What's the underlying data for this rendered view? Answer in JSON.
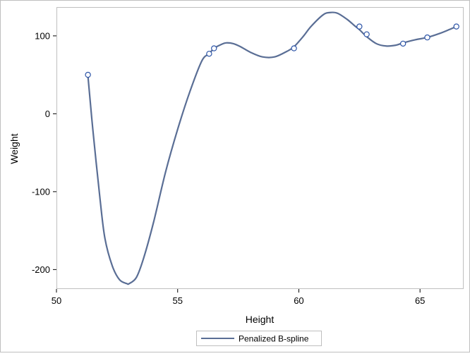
{
  "chart_data": {
    "type": "line",
    "xlabel": "Height",
    "ylabel": "Weight",
    "xlim": [
      50,
      66.8
    ],
    "ylim": [
      -225,
      137
    ],
    "xticks": [
      50,
      55,
      60,
      65
    ],
    "yticks": [
      -200,
      -100,
      0,
      100
    ],
    "grid": false,
    "legend": {
      "placement": "bottom-center",
      "entries": [
        "Penalized B-spline"
      ]
    },
    "colors": {
      "series": "#5a6e95",
      "marker": "#2d55a8",
      "frame": "#bfbfbf",
      "axis": "#000000"
    },
    "series": [
      {
        "name": "Penalized B-spline",
        "curve": {
          "x": [
            51.3,
            51.5,
            51.8,
            52.0,
            52.3,
            52.6,
            52.9,
            53.0,
            53.3,
            53.6,
            54.0,
            54.5,
            55.0,
            55.5,
            56.0,
            56.3,
            56.5,
            56.8,
            57.0,
            57.3,
            57.6,
            58.0,
            58.5,
            59.0,
            59.5,
            59.8,
            60.2,
            60.5,
            61.0,
            61.3,
            61.6,
            62.0,
            62.3,
            62.5,
            62.8,
            63.2,
            63.6,
            64.0,
            64.3,
            64.8,
            65.3,
            65.8,
            66.2,
            66.5
          ],
          "y": [
            48,
            -20,
            -110,
            -160,
            -195,
            -213,
            -218,
            -218,
            -210,
            -185,
            -140,
            -75,
            -20,
            28,
            68,
            77,
            84,
            89,
            91,
            90,
            86,
            79,
            73,
            73,
            80,
            86,
            100,
            112,
            127,
            130,
            129,
            121,
            113,
            108,
            99,
            90,
            87,
            88,
            91,
            95,
            98,
            103,
            108,
            112
          ]
        },
        "points": {
          "x": [
            51.3,
            56.3,
            56.5,
            59.8,
            62.5,
            62.8,
            64.3,
            65.3,
            66.5
          ],
          "y": [
            50,
            77,
            84,
            84,
            112,
            102,
            90,
            98,
            112
          ]
        }
      }
    ]
  }
}
